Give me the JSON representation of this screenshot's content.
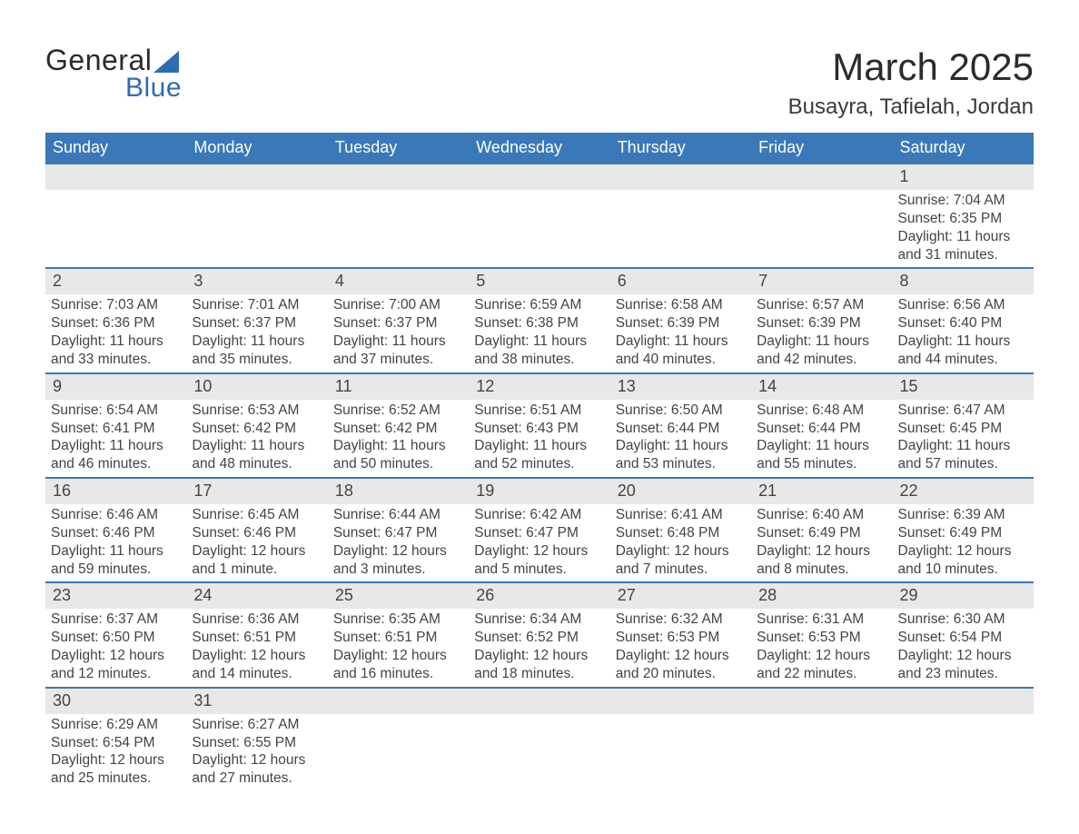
{
  "brand": {
    "general": "General",
    "blue": "Blue",
    "accent_color": "#2e6cb0"
  },
  "title": {
    "month": "March 2025",
    "location": "Busayra, Tafielah, Jordan"
  },
  "colors": {
    "header_bg": "#3a78b8",
    "header_text": "#ffffff",
    "daynum_bg": "#e8e8e8",
    "body_text": "#444444",
    "rule": "#3a78b8",
    "page_bg": "#ffffff"
  },
  "typography": {
    "month_title_fontsize": 42,
    "location_fontsize": 24,
    "weekday_fontsize": 18,
    "daynum_fontsize": 18,
    "body_fontsize": 15.5,
    "font_family": "Arial"
  },
  "labels": {
    "sunrise": "Sunrise:",
    "sunset": "Sunset:",
    "daylight": "Daylight:"
  },
  "weekdays": [
    "Sunday",
    "Monday",
    "Tuesday",
    "Wednesday",
    "Thursday",
    "Friday",
    "Saturday"
  ],
  "weeks": [
    [
      {
        "day": "",
        "sunrise": "",
        "sunset": "",
        "daylight1": "",
        "daylight2": ""
      },
      {
        "day": "",
        "sunrise": "",
        "sunset": "",
        "daylight1": "",
        "daylight2": ""
      },
      {
        "day": "",
        "sunrise": "",
        "sunset": "",
        "daylight1": "",
        "daylight2": ""
      },
      {
        "day": "",
        "sunrise": "",
        "sunset": "",
        "daylight1": "",
        "daylight2": ""
      },
      {
        "day": "",
        "sunrise": "",
        "sunset": "",
        "daylight1": "",
        "daylight2": ""
      },
      {
        "day": "",
        "sunrise": "",
        "sunset": "",
        "daylight1": "",
        "daylight2": ""
      },
      {
        "day": "1",
        "sunrise": "7:04 AM",
        "sunset": "6:35 PM",
        "daylight1": "11 hours",
        "daylight2": "and 31 minutes."
      }
    ],
    [
      {
        "day": "2",
        "sunrise": "7:03 AM",
        "sunset": "6:36 PM",
        "daylight1": "11 hours",
        "daylight2": "and 33 minutes."
      },
      {
        "day": "3",
        "sunrise": "7:01 AM",
        "sunset": "6:37 PM",
        "daylight1": "11 hours",
        "daylight2": "and 35 minutes."
      },
      {
        "day": "4",
        "sunrise": "7:00 AM",
        "sunset": "6:37 PM",
        "daylight1": "11 hours",
        "daylight2": "and 37 minutes."
      },
      {
        "day": "5",
        "sunrise": "6:59 AM",
        "sunset": "6:38 PM",
        "daylight1": "11 hours",
        "daylight2": "and 38 minutes."
      },
      {
        "day": "6",
        "sunrise": "6:58 AM",
        "sunset": "6:39 PM",
        "daylight1": "11 hours",
        "daylight2": "and 40 minutes."
      },
      {
        "day": "7",
        "sunrise": "6:57 AM",
        "sunset": "6:39 PM",
        "daylight1": "11 hours",
        "daylight2": "and 42 minutes."
      },
      {
        "day": "8",
        "sunrise": "6:56 AM",
        "sunset": "6:40 PM",
        "daylight1": "11 hours",
        "daylight2": "and 44 minutes."
      }
    ],
    [
      {
        "day": "9",
        "sunrise": "6:54 AM",
        "sunset": "6:41 PM",
        "daylight1": "11 hours",
        "daylight2": "and 46 minutes."
      },
      {
        "day": "10",
        "sunrise": "6:53 AM",
        "sunset": "6:42 PM",
        "daylight1": "11 hours",
        "daylight2": "and 48 minutes."
      },
      {
        "day": "11",
        "sunrise": "6:52 AM",
        "sunset": "6:42 PM",
        "daylight1": "11 hours",
        "daylight2": "and 50 minutes."
      },
      {
        "day": "12",
        "sunrise": "6:51 AM",
        "sunset": "6:43 PM",
        "daylight1": "11 hours",
        "daylight2": "and 52 minutes."
      },
      {
        "day": "13",
        "sunrise": "6:50 AM",
        "sunset": "6:44 PM",
        "daylight1": "11 hours",
        "daylight2": "and 53 minutes."
      },
      {
        "day": "14",
        "sunrise": "6:48 AM",
        "sunset": "6:44 PM",
        "daylight1": "11 hours",
        "daylight2": "and 55 minutes."
      },
      {
        "day": "15",
        "sunrise": "6:47 AM",
        "sunset": "6:45 PM",
        "daylight1": "11 hours",
        "daylight2": "and 57 minutes."
      }
    ],
    [
      {
        "day": "16",
        "sunrise": "6:46 AM",
        "sunset": "6:46 PM",
        "daylight1": "11 hours",
        "daylight2": "and 59 minutes."
      },
      {
        "day": "17",
        "sunrise": "6:45 AM",
        "sunset": "6:46 PM",
        "daylight1": "12 hours",
        "daylight2": "and 1 minute."
      },
      {
        "day": "18",
        "sunrise": "6:44 AM",
        "sunset": "6:47 PM",
        "daylight1": "12 hours",
        "daylight2": "and 3 minutes."
      },
      {
        "day": "19",
        "sunrise": "6:42 AM",
        "sunset": "6:47 PM",
        "daylight1": "12 hours",
        "daylight2": "and 5 minutes."
      },
      {
        "day": "20",
        "sunrise": "6:41 AM",
        "sunset": "6:48 PM",
        "daylight1": "12 hours",
        "daylight2": "and 7 minutes."
      },
      {
        "day": "21",
        "sunrise": "6:40 AM",
        "sunset": "6:49 PM",
        "daylight1": "12 hours",
        "daylight2": "and 8 minutes."
      },
      {
        "day": "22",
        "sunrise": "6:39 AM",
        "sunset": "6:49 PM",
        "daylight1": "12 hours",
        "daylight2": "and 10 minutes."
      }
    ],
    [
      {
        "day": "23",
        "sunrise": "6:37 AM",
        "sunset": "6:50 PM",
        "daylight1": "12 hours",
        "daylight2": "and 12 minutes."
      },
      {
        "day": "24",
        "sunrise": "6:36 AM",
        "sunset": "6:51 PM",
        "daylight1": "12 hours",
        "daylight2": "and 14 minutes."
      },
      {
        "day": "25",
        "sunrise": "6:35 AM",
        "sunset": "6:51 PM",
        "daylight1": "12 hours",
        "daylight2": "and 16 minutes."
      },
      {
        "day": "26",
        "sunrise": "6:34 AM",
        "sunset": "6:52 PM",
        "daylight1": "12 hours",
        "daylight2": "and 18 minutes."
      },
      {
        "day": "27",
        "sunrise": "6:32 AM",
        "sunset": "6:53 PM",
        "daylight1": "12 hours",
        "daylight2": "and 20 minutes."
      },
      {
        "day": "28",
        "sunrise": "6:31 AM",
        "sunset": "6:53 PM",
        "daylight1": "12 hours",
        "daylight2": "and 22 minutes."
      },
      {
        "day": "29",
        "sunrise": "6:30 AM",
        "sunset": "6:54 PM",
        "daylight1": "12 hours",
        "daylight2": "and 23 minutes."
      }
    ],
    [
      {
        "day": "30",
        "sunrise": "6:29 AM",
        "sunset": "6:54 PM",
        "daylight1": "12 hours",
        "daylight2": "and 25 minutes."
      },
      {
        "day": "31",
        "sunrise": "6:27 AM",
        "sunset": "6:55 PM",
        "daylight1": "12 hours",
        "daylight2": "and 27 minutes."
      },
      {
        "day": "",
        "sunrise": "",
        "sunset": "",
        "daylight1": "",
        "daylight2": ""
      },
      {
        "day": "",
        "sunrise": "",
        "sunset": "",
        "daylight1": "",
        "daylight2": ""
      },
      {
        "day": "",
        "sunrise": "",
        "sunset": "",
        "daylight1": "",
        "daylight2": ""
      },
      {
        "day": "",
        "sunrise": "",
        "sunset": "",
        "daylight1": "",
        "daylight2": ""
      },
      {
        "day": "",
        "sunrise": "",
        "sunset": "",
        "daylight1": "",
        "daylight2": ""
      }
    ]
  ]
}
